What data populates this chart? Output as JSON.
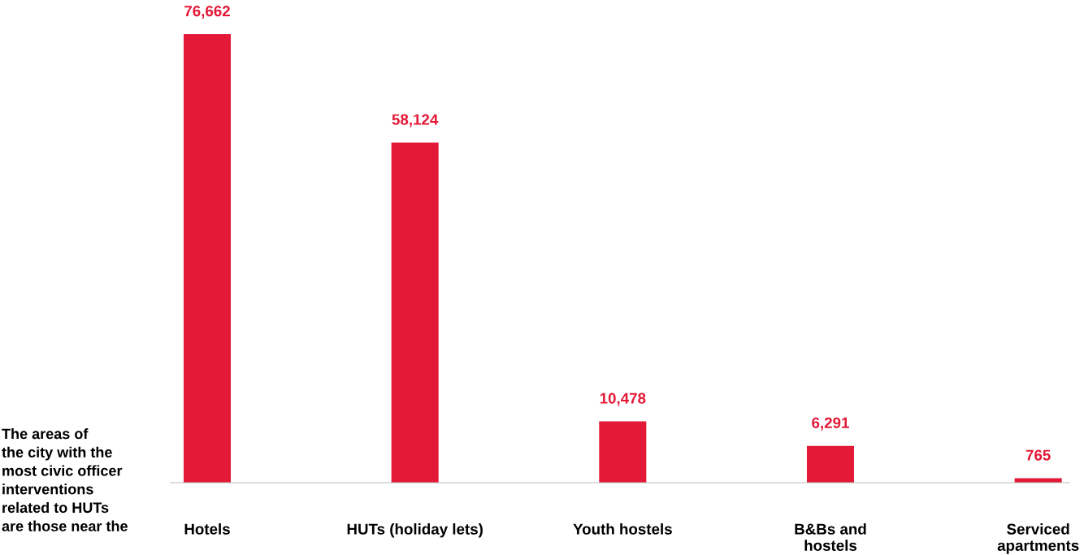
{
  "chart_data": {
    "type": "bar",
    "categories": [
      "Hotels",
      "HUTs (holiday lets)",
      "Youth hostels",
      "B&Bs and\nhostels",
      "Serviced\napartments"
    ],
    "values": [
      76662,
      58124,
      10478,
      6291,
      765
    ],
    "color": "#e31937",
    "data_labels": true,
    "value_labels": [
      "76,662",
      "58,124",
      "10,478",
      "6,291",
      "765"
    ],
    "annotations": [
      "The areas of\nthe city with the\nmost civic officer\ninterventions\nrelated to HUTs\nare those near the"
    ]
  }
}
